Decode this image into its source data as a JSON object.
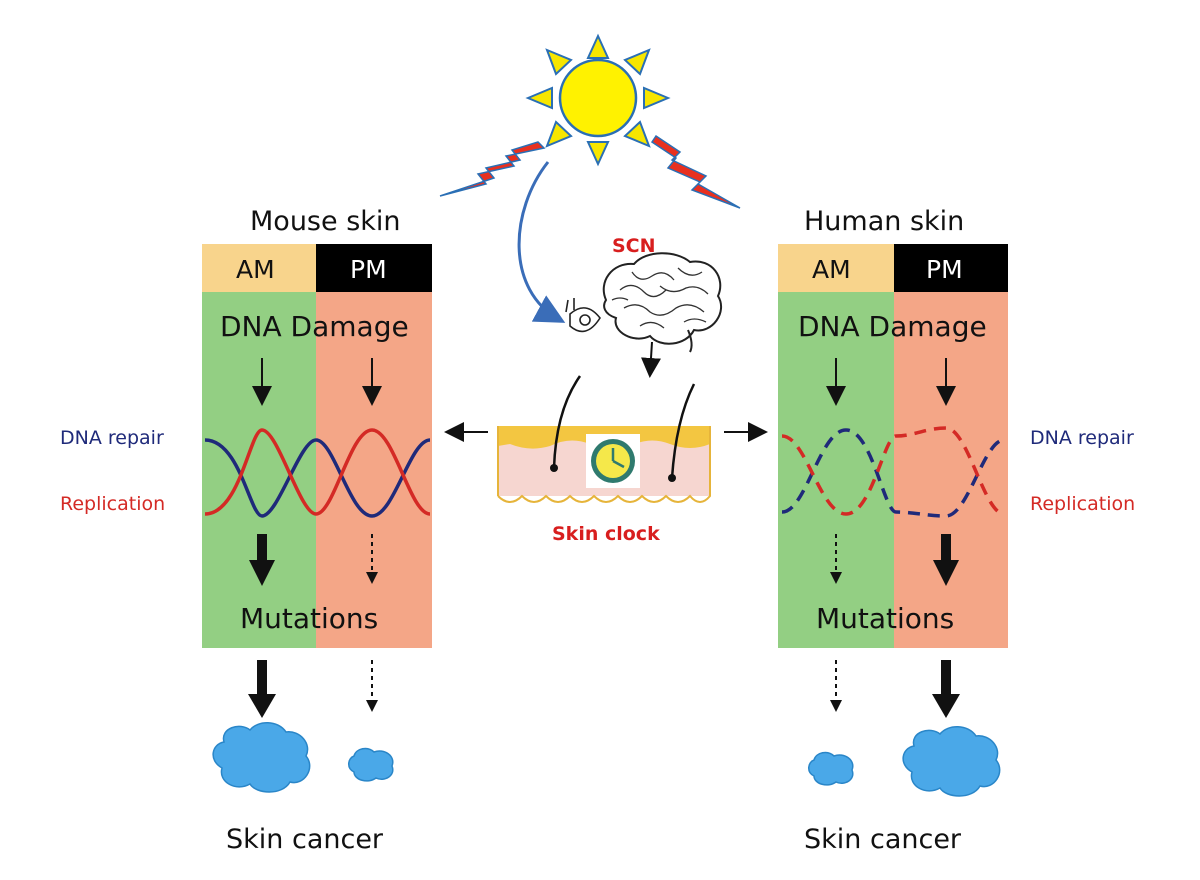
{
  "colors": {
    "am_header": "#f8d48c",
    "pm_header": "#000000",
    "am_panel": "#93cf83",
    "pm_panel": "#f4a687",
    "repair_blue": "#1f2a7a",
    "replication_red": "#d42a25",
    "sun_yellow": "#fff200",
    "sun_ray": "#f7e600",
    "lightning_red": "#e8301f",
    "tumor_blue": "#4aa8e8",
    "curved_arrow_blue": "#3a6db8",
    "scn_red": "#d81e1e",
    "skin_epidermis": "#f3c641",
    "skin_dermis": "#f6d6d0",
    "clock_frame": "#2f7a6e",
    "clock_face": "#f5e84a"
  },
  "sun": {
    "icon": "sun-icon"
  },
  "center": {
    "scn_label": "SCN",
    "skin_clock_label": "Skin clock",
    "eye_icon": "eye-icon",
    "brain_icon": "brain-icon",
    "clock_icon": "clock-icon"
  },
  "mouse": {
    "title": "Mouse skin",
    "am_label": "AM",
    "pm_label": "PM",
    "damage_label": "DNA Damage",
    "repair_label": "DNA repair",
    "replication_label": "Replication",
    "mutations_label": "Mutations",
    "cancer_label": "Skin cancer",
    "mutation_strength": {
      "am": "strong",
      "pm": "weak"
    },
    "cancer_size": {
      "am": "large",
      "pm": "small"
    }
  },
  "human": {
    "title": "Human skin",
    "am_label": "AM",
    "pm_label": "PM",
    "damage_label": "DNA Damage",
    "repair_label": "DNA repair",
    "replication_label": "Replication",
    "mutations_label": "Mutations",
    "cancer_label": "Skin cancer",
    "mutation_strength": {
      "am": "weak",
      "pm": "strong"
    },
    "cancer_size": {
      "am": "small",
      "pm": "large"
    }
  }
}
